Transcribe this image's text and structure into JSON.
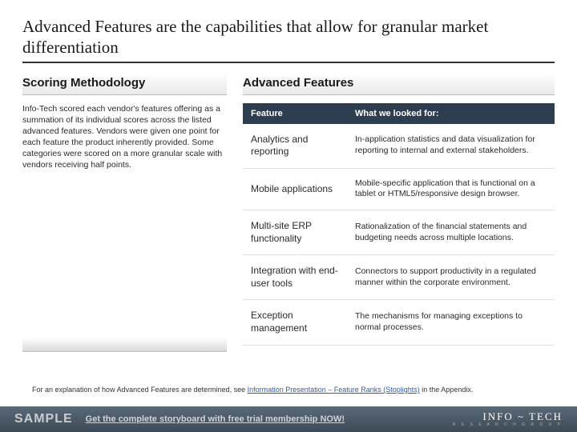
{
  "title": "Advanced Features are the capabilities that allow for granular market differentiation",
  "left": {
    "heading": "Scoring Methodology",
    "body": "Info-Tech scored each vendor's features offering as a summation of its individual scores across the listed advanced features. Vendors were given one point for each feature the product inherently provided. Some categories were scored on a more granular scale with vendors receiving half points."
  },
  "right": {
    "heading": "Advanced Features",
    "table": {
      "header_bg": "#2c3e50",
      "columns": [
        "Feature",
        "What we looked for:"
      ],
      "rows": [
        [
          "Analytics and reporting",
          "In-application statistics and data visualization for reporting to internal and external stakeholders."
        ],
        [
          "Mobile applications",
          "Mobile-specific application that is functional on a tablet or HTML5/responsive design browser."
        ],
        [
          "Multi-site ERP functionality",
          "Rationalization of the financial statements and budgeting needs across multiple locations."
        ],
        [
          "Integration with end-user tools",
          "Connectors to support productivity in a regulated manner within the corporate environment."
        ],
        [
          "Exception management",
          "The mechanisms for managing exceptions to normal processes."
        ]
      ]
    }
  },
  "footnote": {
    "prefix": "For an explanation of how Advanced Features are determined, see ",
    "link": "Information Presentation – Feature Ranks (Stoplights)",
    "suffix": " in the Appendix."
  },
  "footer": {
    "sample": "SAMPLE",
    "cta": "Get the complete storyboard with free trial membership NOW!",
    "logo_main": "INFO ~ TECH",
    "logo_sub": "R E S E A R C H   G R O U P"
  },
  "colors": {
    "title_rule": "#333333",
    "table_header_bg": "#2c3e50",
    "table_header_fg": "#ffffff",
    "link": "#2a5db0",
    "footer_grad_top": "#5a6a78",
    "footer_grad_bot": "#3d4a56"
  }
}
